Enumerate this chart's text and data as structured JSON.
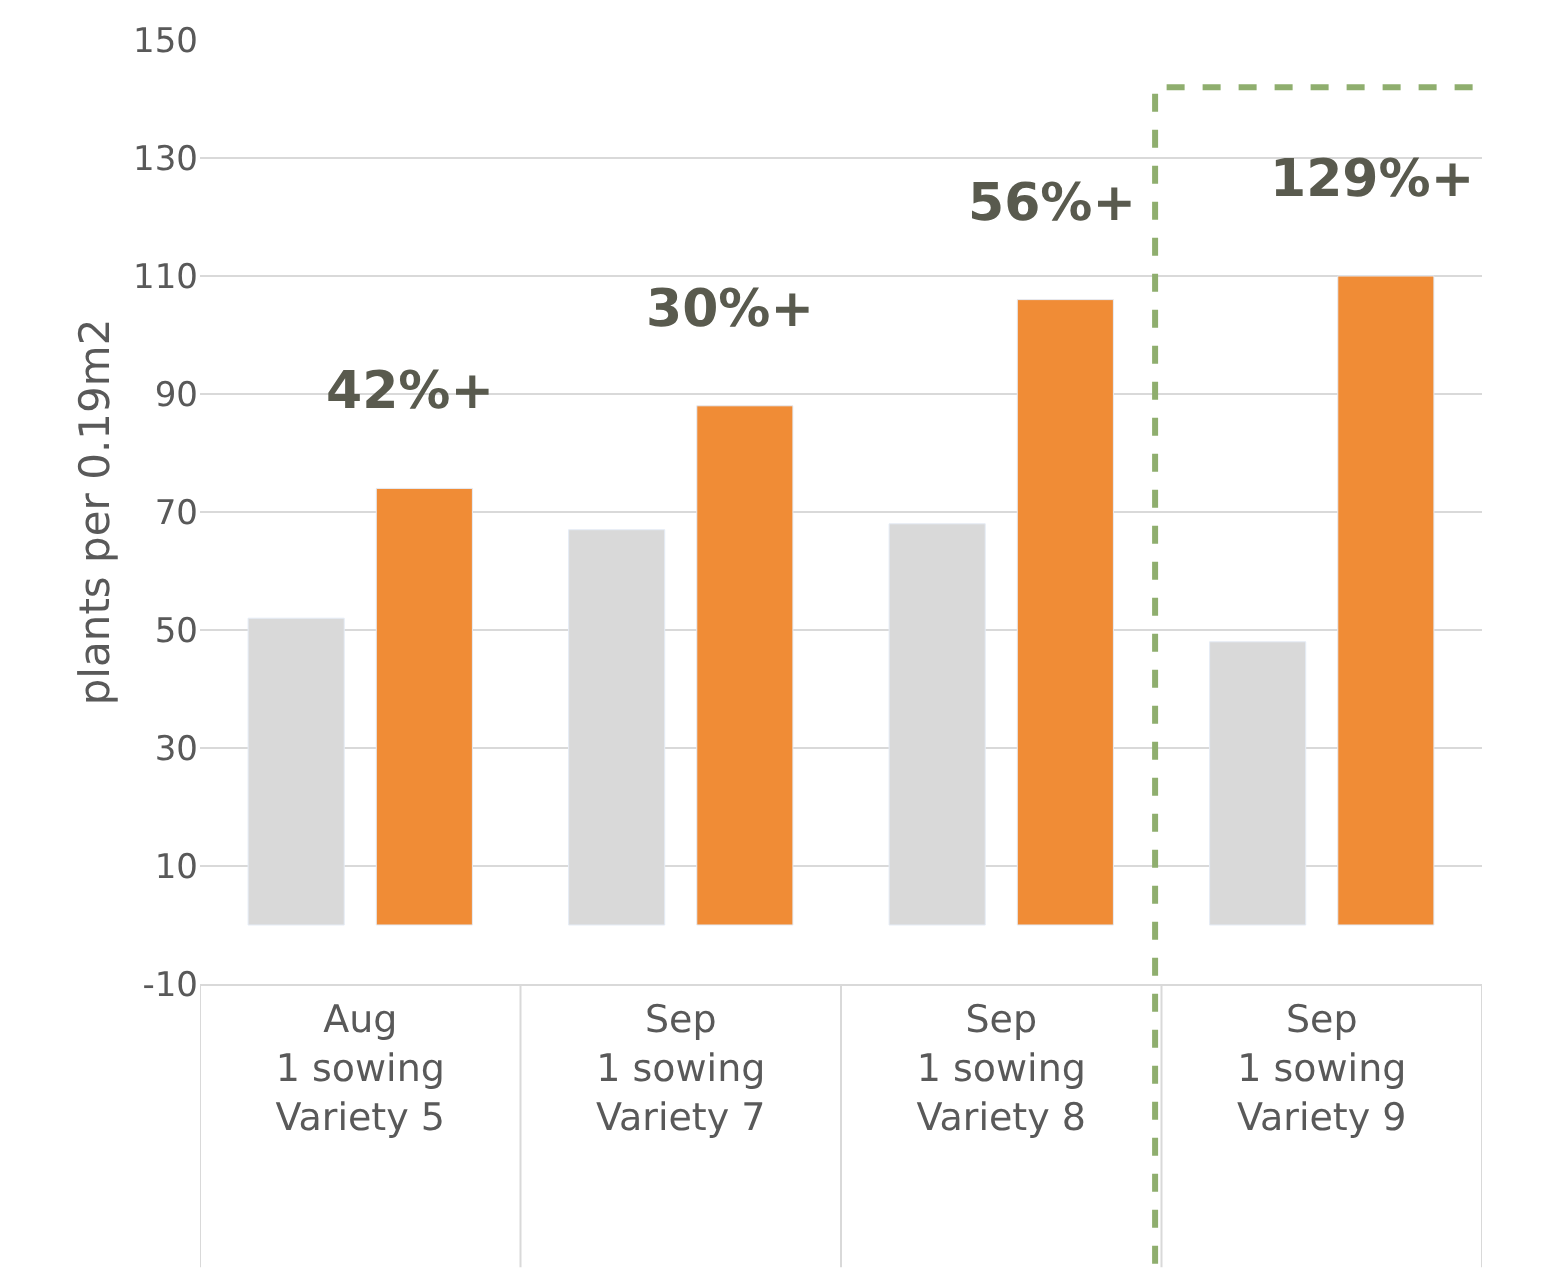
{
  "chart_data": {
    "type": "bar",
    "ylabel": "plants per 0.19m2",
    "categories": [
      "Aug\n1 sowing\nVariety 5",
      "Sep\n1 sowing\nVariety 7",
      "Sep\n1 sowing\nVariety 8",
      "Sep\n1 sowing\nVariety 9"
    ],
    "series": [
      {
        "color": "#d9d9d9",
        "values": [
          52,
          67,
          68,
          48
        ]
      },
      {
        "color": "#f08c36",
        "values": [
          74,
          88,
          106,
          110
        ]
      }
    ],
    "ylim": [
      -10,
      150
    ],
    "yticks": [
      -10,
      10,
      30,
      50,
      70,
      90,
      110,
      130,
      150
    ],
    "grid": "y",
    "annotations": [
      "42%+",
      "30%+",
      "56%+",
      "129%+"
    ]
  }
}
